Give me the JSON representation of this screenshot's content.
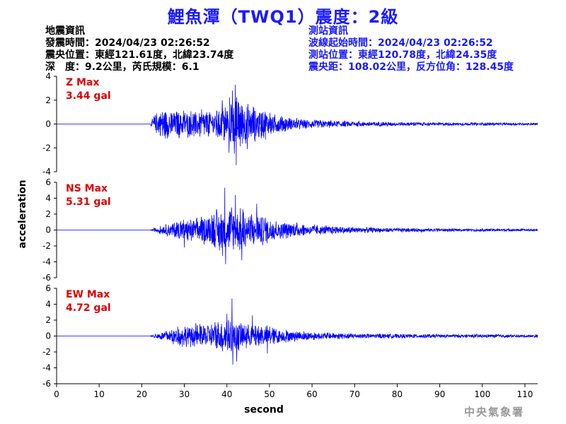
{
  "title": "鯉魚潭（TWQ1）震度：2級",
  "quake_info": {
    "heading": "地震資訊",
    "time": "發震時間：2024/04/23 02:26:52",
    "epicenter": "震央位置：東經121.61度，北緯23.74度",
    "depth_mag": "深　度：9.2公里，芮氏規模：6.1"
  },
  "station_info": {
    "heading": "測站資訊",
    "wave_start": "波線起始時間：2024/04/23 02:26:52",
    "location": "測站位置：東經120.78度，北緯24.35度",
    "distance": "震央距：108.02公里，反方位角：128.45度"
  },
  "agency": "中央氣象署",
  "colors": {
    "title": "#1a1aff",
    "trace": "#0000ff",
    "max_label": "#e00000",
    "agency": "#999999"
  },
  "chart_data": {
    "type": "line",
    "xlabel": "second",
    "ylabel": "acceleration",
    "xlim": [
      0,
      113
    ],
    "xticks": [
      0,
      10,
      20,
      30,
      40,
      50,
      60,
      70,
      80,
      90,
      100,
      110
    ],
    "grid": false,
    "panels": [
      {
        "name": "Z Max",
        "max_label": "Z Max",
        "max_value": "3.44 gal",
        "ylim": [
          -4,
          4
        ],
        "yticks": [
          -4,
          -2,
          0,
          2,
          4
        ],
        "envelope": [
          [
            0,
            0.03
          ],
          [
            22,
            0.03
          ],
          [
            23,
            0.9
          ],
          [
            25,
            1.6
          ],
          [
            28,
            1.4
          ],
          [
            31,
            1.3
          ],
          [
            35,
            1.4
          ],
          [
            38,
            1.6
          ],
          [
            40,
            2.2
          ],
          [
            42,
            3.0
          ],
          [
            44,
            2.3
          ],
          [
            47,
            1.9
          ],
          [
            50,
            1.2
          ],
          [
            55,
            0.6
          ],
          [
            62,
            0.4
          ],
          [
            70,
            0.25
          ],
          [
            85,
            0.18
          ],
          [
            100,
            0.14
          ],
          [
            113,
            0.12
          ]
        ],
        "peaks": [
          [
            42.0,
            3.3
          ],
          [
            42.2,
            -3.44
          ],
          [
            41.3,
            2.8
          ],
          [
            40.5,
            -2.4
          ],
          [
            44.8,
            -2.1
          ],
          [
            38.9,
            2.0
          ]
        ]
      },
      {
        "name": "NS Max",
        "max_label": "NS Max",
        "max_value": "5.31 gal",
        "ylim": [
          -6,
          6
        ],
        "yticks": [
          -6,
          -4,
          -2,
          0,
          2,
          4,
          6
        ],
        "envelope": [
          [
            0,
            0.03
          ],
          [
            22,
            0.03
          ],
          [
            23,
            0.3
          ],
          [
            26,
            0.9
          ],
          [
            29,
            1.5
          ],
          [
            32,
            1.7
          ],
          [
            36,
            2.4
          ],
          [
            38,
            3.2
          ],
          [
            40,
            3.8
          ],
          [
            42,
            3.5
          ],
          [
            45,
            2.9
          ],
          [
            48,
            2.3
          ],
          [
            52,
            1.4
          ],
          [
            56,
            1.0
          ],
          [
            62,
            0.7
          ],
          [
            70,
            0.45
          ],
          [
            80,
            0.3
          ],
          [
            95,
            0.22
          ],
          [
            113,
            0.18
          ]
        ],
        "peaks": [
          [
            39.5,
            5.31
          ],
          [
            39.7,
            -4.3
          ],
          [
            42.0,
            4.4
          ],
          [
            43.5,
            -3.8
          ],
          [
            47.0,
            3.3
          ],
          [
            30.0,
            -2.2
          ]
        ]
      },
      {
        "name": "EW Max",
        "max_label": "EW Max",
        "max_value": "4.72 gal",
        "ylim": [
          -6,
          6
        ],
        "yticks": [
          -6,
          -4,
          -2,
          0,
          2,
          4,
          6
        ],
        "envelope": [
          [
            0,
            0.03
          ],
          [
            22,
            0.03
          ],
          [
            23,
            0.3
          ],
          [
            26,
            0.9
          ],
          [
            29,
            1.5
          ],
          [
            32,
            1.7
          ],
          [
            36,
            1.8
          ],
          [
            38,
            2.3
          ],
          [
            40,
            2.8
          ],
          [
            42,
            2.3
          ],
          [
            45,
            2.0
          ],
          [
            49,
            1.6
          ],
          [
            53,
            1.0
          ],
          [
            58,
            0.7
          ],
          [
            65,
            0.5
          ],
          [
            75,
            0.35
          ],
          [
            90,
            0.28
          ],
          [
            113,
            0.22
          ]
        ],
        "peaks": [
          [
            41.2,
            4.72
          ],
          [
            41.4,
            -3.6
          ],
          [
            42.3,
            -3.2
          ],
          [
            40.0,
            2.8
          ],
          [
            46.0,
            2.6
          ],
          [
            49.5,
            -2.2
          ]
        ]
      }
    ]
  }
}
